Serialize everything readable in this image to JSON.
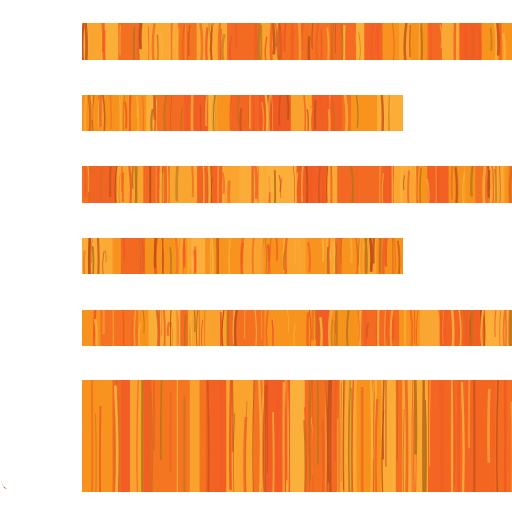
{
  "icon": {
    "name": "text-align-left-icon",
    "style": "orange wood-grain texture"
  },
  "colors": {
    "background": "#ffffff",
    "base": "#f7931e",
    "stripe_light": "#fbb03b",
    "stripe_mid": "#f15a24",
    "stripe_dark": "#c1501a",
    "stripe_olive": "#b8741a"
  },
  "bars": [
    {
      "label": "line-1",
      "length": 1.0
    },
    {
      "label": "line-2",
      "length": 0.75
    },
    {
      "label": "line-3",
      "length": 1.0
    },
    {
      "label": "line-4",
      "length": 0.75
    },
    {
      "label": "line-5",
      "length": 1.0
    },
    {
      "label": "block-6",
      "length": 1.0
    }
  ]
}
